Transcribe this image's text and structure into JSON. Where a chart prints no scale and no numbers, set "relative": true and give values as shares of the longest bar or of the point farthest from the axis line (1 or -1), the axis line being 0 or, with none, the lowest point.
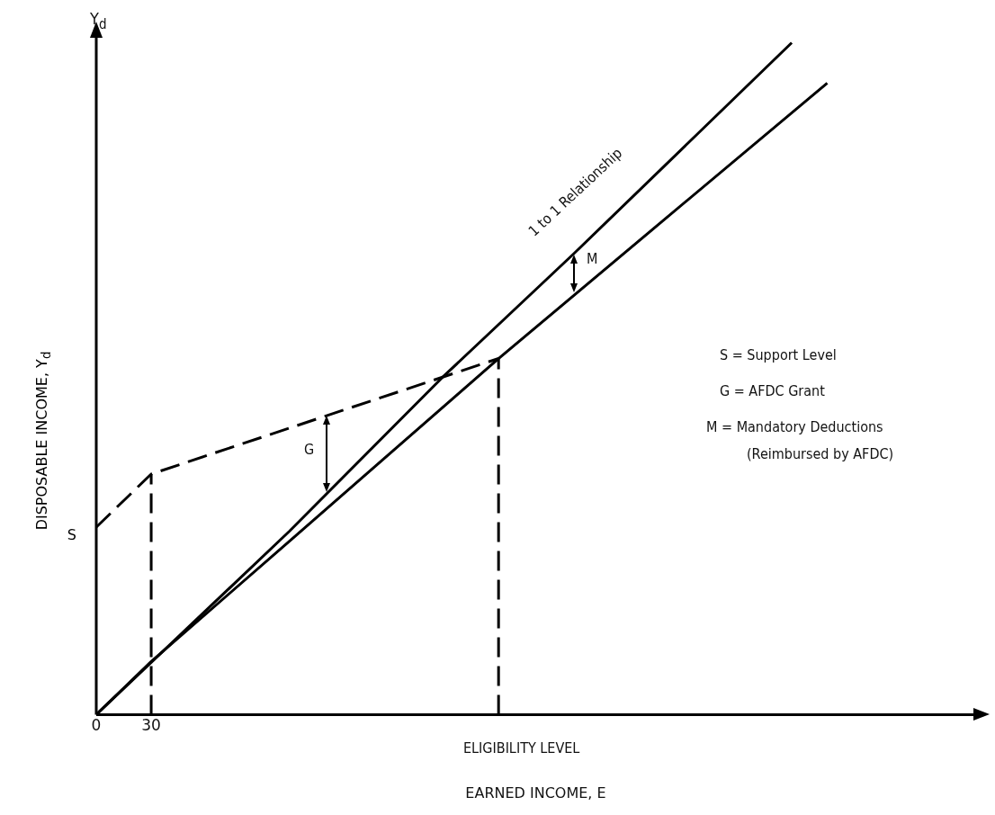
{
  "chart_data": {
    "type": "line",
    "relative": true,
    "xlabel": "EARNED INCOME, E",
    "ylabel": "DISPOSABLE INCOME, Y$_{d}$",
    "xlim": [
      0,
      480
    ],
    "xticks": [
      0,
      30
    ],
    "grid": false,
    "legend": false,
    "marker": "none",
    "series": [
      {
        "color": "#000000",
        "x": [
          0,
          105.5,
          188.7,
          260.8,
          379.8
        ],
        "values": [
          0,
          0.273,
          0.501,
          0.686,
          1
        ]
      },
      {
        "color": "#000000",
        "x": [
          0,
          30,
          105.5,
          219.7,
          399.2
        ],
        "values": [
          0,
          0.079,
          0.258,
          0.53,
          0.94
        ]
      },
      {
        "color": "#000000",
        "line_style": "dashed",
        "x": [
          0,
          30,
          219.7
        ],
        "values": [
          0.279,
          0.358,
          0.53
        ]
      },
      {
        "color": "#000000",
        "line_style": "dashed",
        "x": [
          30,
          30
        ],
        "values": [
          0,
          0.358
        ]
      },
      {
        "color": "#000000",
        "line_style": "dashed",
        "x": [
          219.7,
          219.7
        ],
        "values": [
          0,
          0.53
        ]
      }
    ],
    "annotations": [
      {
        "text": "S",
        "x": 0,
        "y": 0.279
      },
      "Y$_{d}$",
      "1 to 1 Relationship",
      "G",
      "M",
      "S = Support Level",
      "G = AFDC Grant",
      "M = Mandatory Deductions",
      "(Reimbursed by AFDC)",
      "ELIGIBILITY LEVEL"
    ]
  }
}
